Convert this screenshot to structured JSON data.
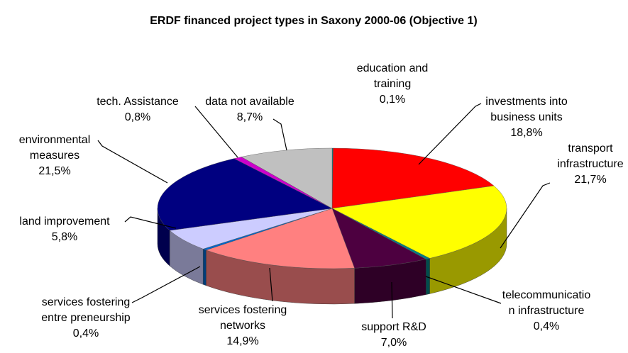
{
  "chart_data": {
    "type": "pie3d",
    "title": "ERDF financed project types in Saxony 2000-06 (Objective 1)",
    "categories": [
      [
        "education and",
        "training"
      ],
      [
        "investments into",
        "business units"
      ],
      [
        "transport",
        "infrastructure"
      ],
      [
        "telecommunicatio",
        "n infrastructure"
      ],
      [
        "support R&D"
      ],
      [
        "services fostering",
        "networks"
      ],
      [
        "services fostering",
        "entre preneurship"
      ],
      [
        "land improvement"
      ],
      [
        "environmental",
        "measures"
      ],
      [
        "tech. Assistance"
      ],
      [
        "data not available"
      ]
    ],
    "values": [
      0.1,
      18.8,
      21.7,
      0.4,
      7.0,
      14.9,
      0.4,
      5.8,
      21.5,
      0.8,
      8.7
    ],
    "value_labels": [
      "0,1%",
      "18,8%",
      "21,7%",
      "0,4%",
      "7,0%",
      "14,9%",
      "0,4%",
      "5,8%",
      "21,5%",
      "0,8%",
      "8,7%"
    ],
    "colors": [
      "#008080",
      "#ff0000",
      "#ffff00",
      "#008080",
      "#4d0040",
      "#ff8080",
      "#0066cc",
      "#ccccff",
      "#000080",
      "#cc00cc",
      "#c0c0c0"
    ]
  }
}
